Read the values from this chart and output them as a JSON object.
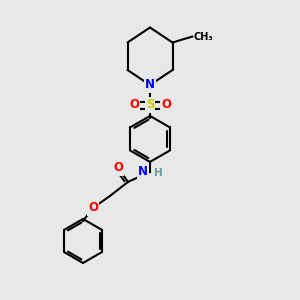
{
  "bg_color": "#e8e8e8",
  "bond_color": "#000000",
  "bond_width": 1.5,
  "atom_colors": {
    "N": "#0000ff",
    "O": "#ff0000",
    "S": "#cccc00",
    "H": "#669999",
    "C": "#000000"
  },
  "font_size_atom": 8.5
}
